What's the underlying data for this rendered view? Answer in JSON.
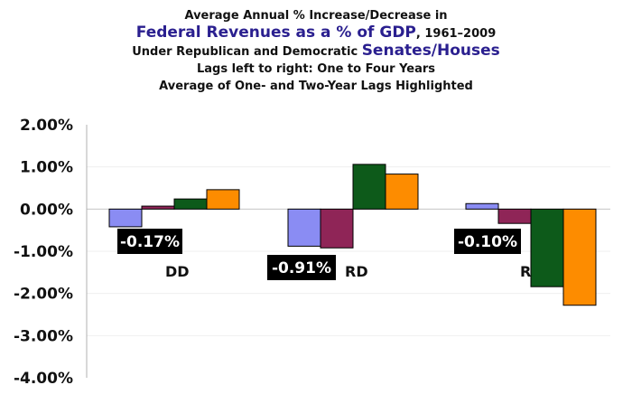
{
  "title": {
    "line1": "Average Annual % Increase/Decrease in",
    "line2_main": "Federal Revenues as a % of GDP",
    "line2_suffix": ", 1961–2009",
    "line3_prefix": "Under Republican and Democratic ",
    "line3_main": "Senates/Houses",
    "line4": "Lags left to right: One to Four Years",
    "line5": "Average of One- and Two-Year Lags Highlighted"
  },
  "chart_data": {
    "type": "bar",
    "categories": [
      "DD",
      "RD",
      "RR"
    ],
    "series": [
      {
        "values": [
          -0.42,
          -0.88,
          0.13
        ]
      },
      {
        "values": [
          0.07,
          -0.92,
          -0.34
        ]
      },
      {
        "values": [
          0.24,
          1.06,
          -1.84
        ]
      },
      {
        "values": [
          0.46,
          0.83,
          -2.28
        ]
      }
    ],
    "colors": [
      "#8a8cf3",
      "#8f2557",
      "#0d5a1a",
      "#fd8c00"
    ],
    "highlights": [
      "-0.17%",
      "-0.91%",
      "-0.10%"
    ],
    "yticks": [
      "2.00%",
      "1.00%",
      "0.00%",
      "-1.00%",
      "-2.00%",
      "-3.00%",
      "-4.00%"
    ],
    "ylim": [
      -4,
      2
    ],
    "grid": true
  }
}
